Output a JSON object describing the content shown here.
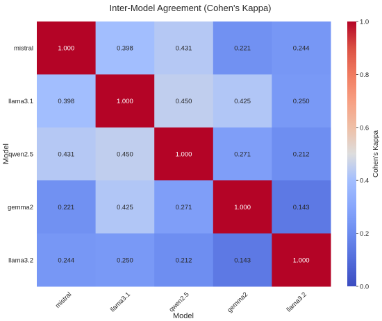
{
  "chart_data": {
    "type": "heatmap",
    "title": "Inter-Model Agreement (Cohen's Kappa)",
    "xlabel": "Model",
    "ylabel": "Model",
    "x_categories": [
      "mistral",
      "llama3.1",
      "qwen2.5",
      "gemma2",
      "llama3.2"
    ],
    "y_categories": [
      "mistral",
      "llama3.1",
      "qwen2.5",
      "gemma2",
      "llama3.2"
    ],
    "values": [
      [
        1.0,
        0.398,
        0.431,
        0.221,
        0.244
      ],
      [
        0.398,
        1.0,
        0.45,
        0.425,
        0.25
      ],
      [
        0.431,
        0.45,
        1.0,
        0.271,
        0.212
      ],
      [
        0.221,
        0.425,
        0.271,
        1.0,
        0.143
      ],
      [
        0.244,
        0.25,
        0.212,
        0.143,
        1.0
      ]
    ],
    "value_format": "0.000",
    "colormap": "coolwarm",
    "colorbar": {
      "label": "Cohen's Kappa",
      "range": [
        0.0,
        1.0
      ],
      "ticks": [
        0.0,
        0.2,
        0.4,
        0.6,
        0.8,
        1.0
      ],
      "tick_labels": [
        "0.0",
        "0.2",
        "0.4",
        "0.6",
        "0.8",
        "1.0"
      ]
    },
    "colors": {
      "low": "#3b4cc0",
      "mid": "#dddddd",
      "high": "#b40426"
    }
  }
}
